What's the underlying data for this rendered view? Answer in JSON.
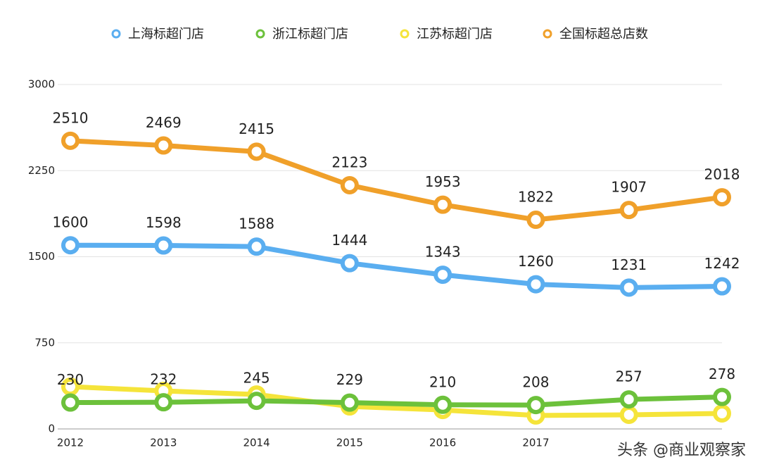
{
  "chart_data": {
    "type": "line",
    "categories": [
      "2012",
      "2013",
      "2014",
      "2015",
      "2016",
      "2017",
      null,
      null
    ],
    "series": [
      {
        "name": "上海标超门店",
        "color": "#5aaef0",
        "values": [
          1600,
          1598,
          1588,
          1444,
          1343,
          1260,
          1231,
          1242
        ],
        "data_labels": true
      },
      {
        "name": "浙江标超门店",
        "color": "#6cc13b",
        "values": [
          230,
          232,
          245,
          229,
          210,
          208,
          257,
          278
        ],
        "data_labels": true
      },
      {
        "name": "江苏标超门店",
        "color": "#f5e43a",
        "values": [
          368,
          331,
          300,
          196,
          165,
          117,
          123,
          135
        ],
        "data_labels": false
      },
      {
        "name": "全国标超总店数",
        "color": "#f0a02a",
        "values": [
          2510,
          2469,
          2415,
          2123,
          1953,
          1822,
          1907,
          2018
        ],
        "data_labels": true
      }
    ],
    "ylim": [
      0,
      3000
    ],
    "yticks": [
      0,
      750,
      1500,
      2250,
      3000
    ],
    "grid": true,
    "legend": "top",
    "watermark": "头条 @商业观察家"
  }
}
